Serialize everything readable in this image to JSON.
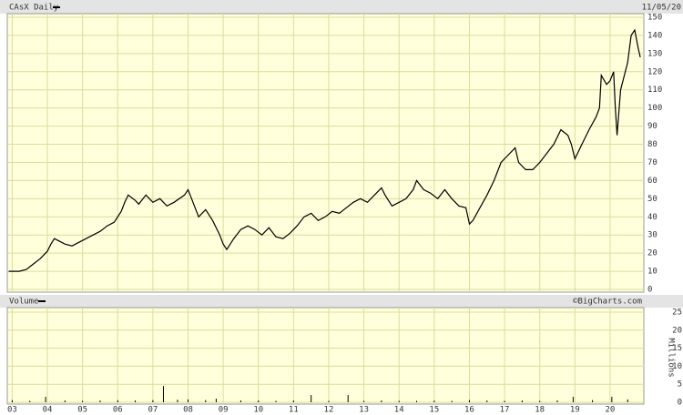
{
  "chart_data": [
    {
      "type": "line",
      "title": "CAsX Daily",
      "annotation": "11/05/20",
      "x": [
        2.9,
        3.2,
        3.4,
        3.6,
        3.8,
        4.0,
        4.1,
        4.2,
        4.3,
        4.5,
        4.7,
        4.9,
        5.1,
        5.3,
        5.5,
        5.7,
        5.9,
        6.1,
        6.2,
        6.3,
        6.5,
        6.6,
        6.8,
        7.0,
        7.2,
        7.4,
        7.6,
        7.9,
        8.0,
        8.1,
        8.3,
        8.5,
        8.7,
        8.9,
        9.0,
        9.1,
        9.3,
        9.5,
        9.7,
        9.9,
        10.1,
        10.3,
        10.5,
        10.7,
        10.9,
        11.1,
        11.3,
        11.5,
        11.7,
        11.9,
        12.1,
        12.3,
        12.5,
        12.7,
        12.9,
        13.1,
        13.3,
        13.5,
        13.6,
        13.8,
        14.0,
        14.2,
        14.4,
        14.5,
        14.7,
        14.9,
        15.1,
        15.3,
        15.5,
        15.7,
        15.9,
        16.0,
        16.1,
        16.3,
        16.5,
        16.7,
        16.9,
        17.1,
        17.3,
        17.4,
        17.6,
        17.8,
        18.0,
        18.2,
        18.4,
        18.6,
        18.8,
        18.9,
        19.0,
        19.2,
        19.4,
        19.6,
        19.7,
        19.75,
        19.9,
        20.0,
        20.1,
        20.15,
        20.2,
        20.3,
        20.5,
        20.6,
        20.7,
        20.8,
        20.86
      ],
      "series": [
        {
          "name": "CAsX",
          "color": "#000000",
          "values": [
            10,
            10,
            11,
            14,
            17,
            21,
            25,
            28,
            27,
            25,
            24,
            26,
            28,
            30,
            32,
            35,
            37,
            43,
            48,
            52,
            49,
            47,
            52,
            48,
            50,
            46,
            48,
            52,
            55,
            50,
            40,
            44,
            38,
            30,
            25,
            22,
            28,
            33,
            35,
            33,
            30,
            34,
            29,
            28,
            31,
            35,
            40,
            42,
            38,
            40,
            43,
            42,
            45,
            48,
            50,
            48,
            52,
            56,
            52,
            46,
            48,
            50,
            55,
            60,
            55,
            53,
            50,
            55,
            50,
            46,
            45,
            36,
            38,
            45,
            52,
            60,
            70,
            74,
            78,
            70,
            66,
            66,
            70,
            75,
            80,
            88,
            85,
            80,
            72,
            80,
            88,
            95,
            100,
            118,
            113,
            115,
            120,
            100,
            85,
            110,
            125,
            140,
            143,
            133,
            128
          ]
        }
      ],
      "xlim": [
        2.86,
        20.96
      ],
      "xticks": [
        3,
        4,
        5,
        6,
        7,
        8,
        9,
        10,
        11,
        12,
        13,
        14,
        15,
        16,
        17,
        18,
        19,
        20
      ],
      "ylim": [
        0,
        150
      ],
      "yticks": [
        0,
        10,
        20,
        30,
        40,
        50,
        60,
        70,
        80,
        90,
        100,
        110,
        120,
        130,
        140,
        150
      ],
      "grid": true
    },
    {
      "type": "bar",
      "title": "Volume",
      "annotation": "©BigCharts.com",
      "y_label": "Millions",
      "x": [
        3.0,
        3.5,
        3.95,
        4.5,
        5.0,
        5.5,
        6.0,
        6.5,
        7.0,
        7.3,
        7.7,
        8.0,
        8.5,
        8.8,
        9.5,
        10.0,
        10.5,
        11.0,
        11.5,
        12.0,
        12.55,
        13.0,
        13.5,
        14.0,
        14.5,
        15.0,
        15.5,
        16.0,
        16.5,
        17.0,
        17.5,
        18.0,
        18.5,
        18.95,
        19.5,
        20.05,
        20.5
      ],
      "series": [
        {
          "name": "Volume",
          "color": "#000000",
          "values": [
            0.6,
            0.4,
            1.5,
            0.5,
            0.4,
            0.5,
            0.6,
            0.5,
            0.6,
            4.5,
            0.7,
            0.8,
            0.6,
            1.0,
            0.5,
            0.5,
            0.4,
            0.5,
            2.0,
            0.4,
            2.0,
            0.4,
            0.5,
            0.4,
            0.4,
            0.5,
            0.4,
            0.6,
            0.5,
            0.4,
            0.5,
            0.4,
            0.5,
            1.5,
            0.6,
            1.5,
            0.8
          ]
        }
      ],
      "xlim": [
        2.86,
        20.96
      ],
      "xticks": [
        {
          "value": 3,
          "label": "03"
        },
        {
          "value": 4,
          "label": "04"
        },
        {
          "value": 5,
          "label": "05"
        },
        {
          "value": 6,
          "label": "06"
        },
        {
          "value": 7,
          "label": "07"
        },
        {
          "value": 8,
          "label": "08"
        },
        {
          "value": 9,
          "label": "09"
        },
        {
          "value": 10,
          "label": "10"
        },
        {
          "value": 11,
          "label": "11"
        },
        {
          "value": 12,
          "label": "12"
        },
        {
          "value": 13,
          "label": "13"
        },
        {
          "value": 14,
          "label": "14"
        },
        {
          "value": 15,
          "label": "15"
        },
        {
          "value": 16,
          "label": "16"
        },
        {
          "value": 17,
          "label": "17"
        },
        {
          "value": 18,
          "label": "18"
        },
        {
          "value": 19,
          "label": "19"
        },
        {
          "value": 20,
          "label": "20"
        }
      ],
      "ylim": [
        0,
        25
      ],
      "yticks": [
        0,
        5,
        10,
        15,
        20,
        25
      ],
      "grid": true
    }
  ]
}
